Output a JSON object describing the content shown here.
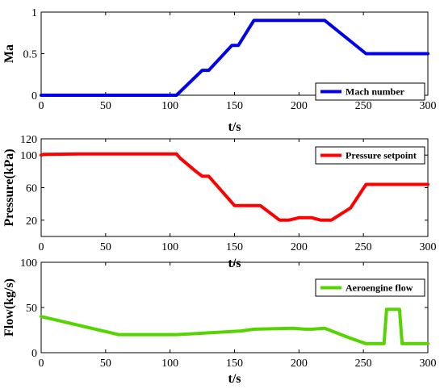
{
  "chart_data": [
    {
      "type": "line",
      "xlabel": "t/s",
      "ylabel": "Ma",
      "xlim": [
        0,
        300
      ],
      "ylim": [
        0,
        1
      ],
      "xticks": [
        "0",
        "50",
        "100",
        "150",
        "200",
        "250",
        "300"
      ],
      "yticks": [
        "0",
        "0.5",
        "1"
      ],
      "legend": "bottom-right",
      "series": [
        {
          "name": "Mach number",
          "color": "#0000ee",
          "x": [
            0,
            105,
            125,
            130,
            148,
            153,
            165,
            220,
            252,
            300
          ],
          "y": [
            0,
            0,
            0.3,
            0.3,
            0.6,
            0.6,
            0.9,
            0.9,
            0.5,
            0.5
          ]
        }
      ]
    },
    {
      "type": "line",
      "xlabel": "t/s",
      "ylabel": "Pressure(kPa)",
      "xlim": [
        0,
        300
      ],
      "ylim": [
        0,
        120
      ],
      "xticks": [
        "0",
        "50",
        "100",
        "150",
        "200",
        "250",
        "300"
      ],
      "yticks": [
        "20",
        "60",
        "100",
        "120"
      ],
      "legend": "top-right",
      "series": [
        {
          "name": "Pressure setpoint",
          "color": "#ff0000",
          "x": [
            0,
            2,
            30,
            60,
            105,
            108,
            120,
            125,
            130,
            150,
            165,
            170,
            185,
            192,
            200,
            210,
            217,
            225,
            240,
            252,
            260,
            300
          ],
          "y": [
            100,
            101,
            101.5,
            101.5,
            101.5,
            96,
            80,
            74,
            74,
            38,
            38,
            38,
            20,
            20,
            23,
            23,
            20,
            20,
            35,
            64,
            64,
            64
          ]
        }
      ]
    },
    {
      "type": "line",
      "xlabel": "t/s",
      "ylabel": "Flow(kg/s)",
      "xlim": [
        0,
        300
      ],
      "ylim": [
        0,
        100
      ],
      "xticks": [
        "0",
        "50",
        "100",
        "150",
        "200",
        "250",
        "300"
      ],
      "yticks": [
        "0",
        "50",
        "100"
      ],
      "legend": "top-right",
      "series": [
        {
          "name": "Aeroengine flow",
          "color": "#55d400",
          "x": [
            0,
            60,
            105,
            130,
            155,
            165,
            195,
            205,
            210,
            220,
            240,
            252,
            266,
            268,
            278,
            280,
            300
          ],
          "y": [
            40,
            20,
            20,
            22,
            24,
            26,
            27,
            26,
            26,
            27,
            16,
            10,
            10,
            48,
            48,
            10,
            10
          ]
        }
      ]
    }
  ]
}
